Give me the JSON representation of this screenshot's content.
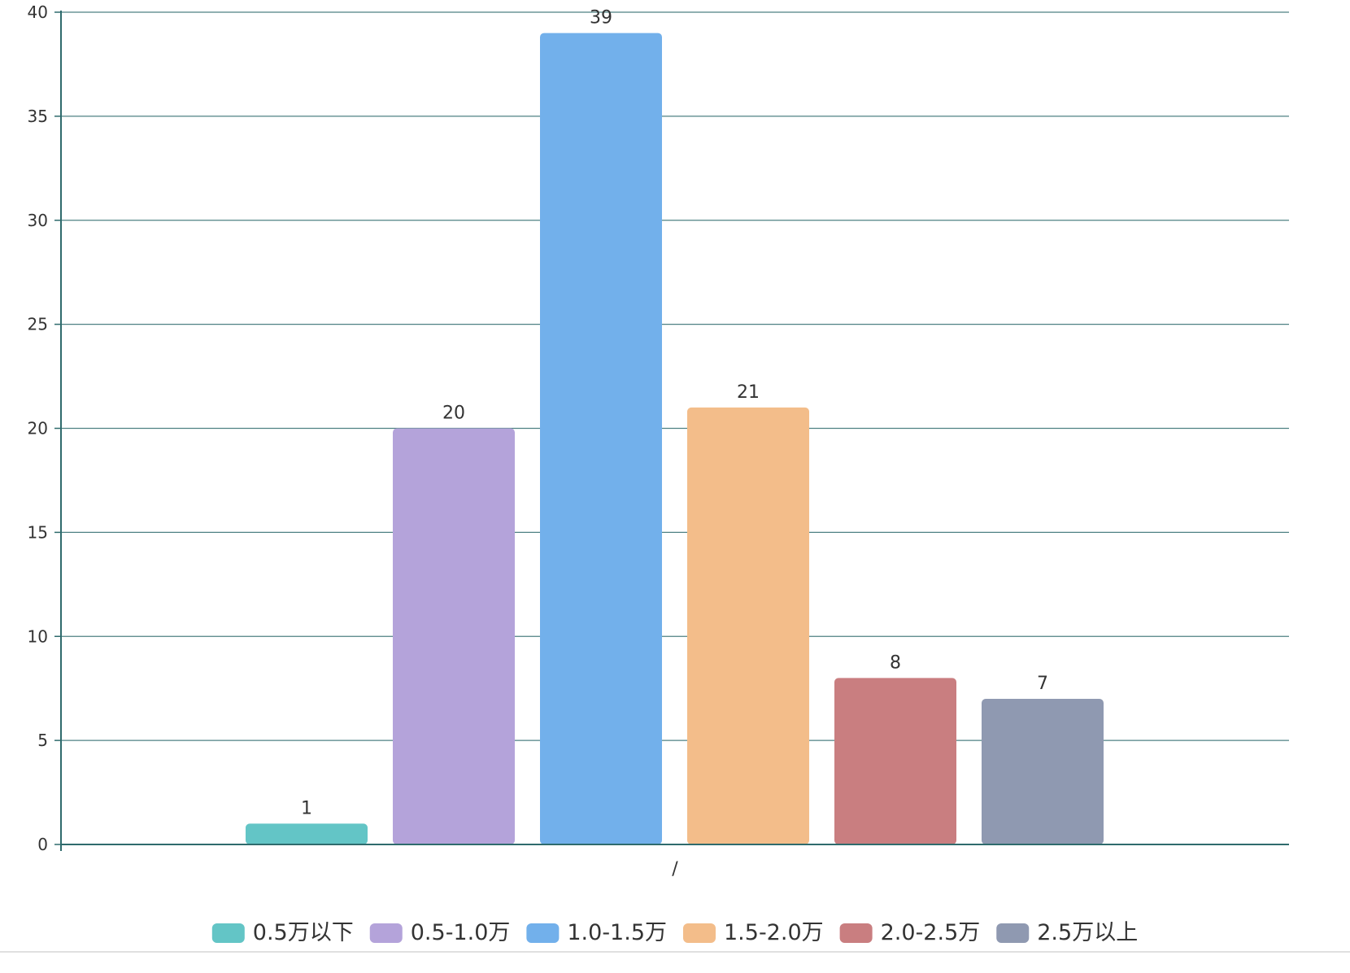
{
  "chart_data": {
    "type": "bar",
    "categories": [
      "/"
    ],
    "series": [
      {
        "name": "0.5万以下",
        "values": [
          1
        ],
        "color": "#63c5c6"
      },
      {
        "name": "0.5-1.0万",
        "values": [
          20
        ],
        "color": "#b4a3da"
      },
      {
        "name": "1.0-1.5万",
        "values": [
          39
        ],
        "color": "#72b0eb"
      },
      {
        "name": "1.5-2.0万",
        "values": [
          21
        ],
        "color": "#f3bd8a"
      },
      {
        "name": "2.0-2.5万",
        "values": [
          8
        ],
        "color": "#c97e80"
      },
      {
        "name": "2.5万以上",
        "values": [
          7
        ],
        "color": "#8f99b1"
      }
    ],
    "yticks": [
      0,
      5,
      10,
      15,
      20,
      25,
      30,
      35,
      40
    ],
    "ylim": [
      0,
      40
    ],
    "grid": true,
    "legend_position": "bottom-center",
    "axis_color": "#2f6b6d",
    "grid_color": "#2f6b6d",
    "label_color": "#333333"
  }
}
